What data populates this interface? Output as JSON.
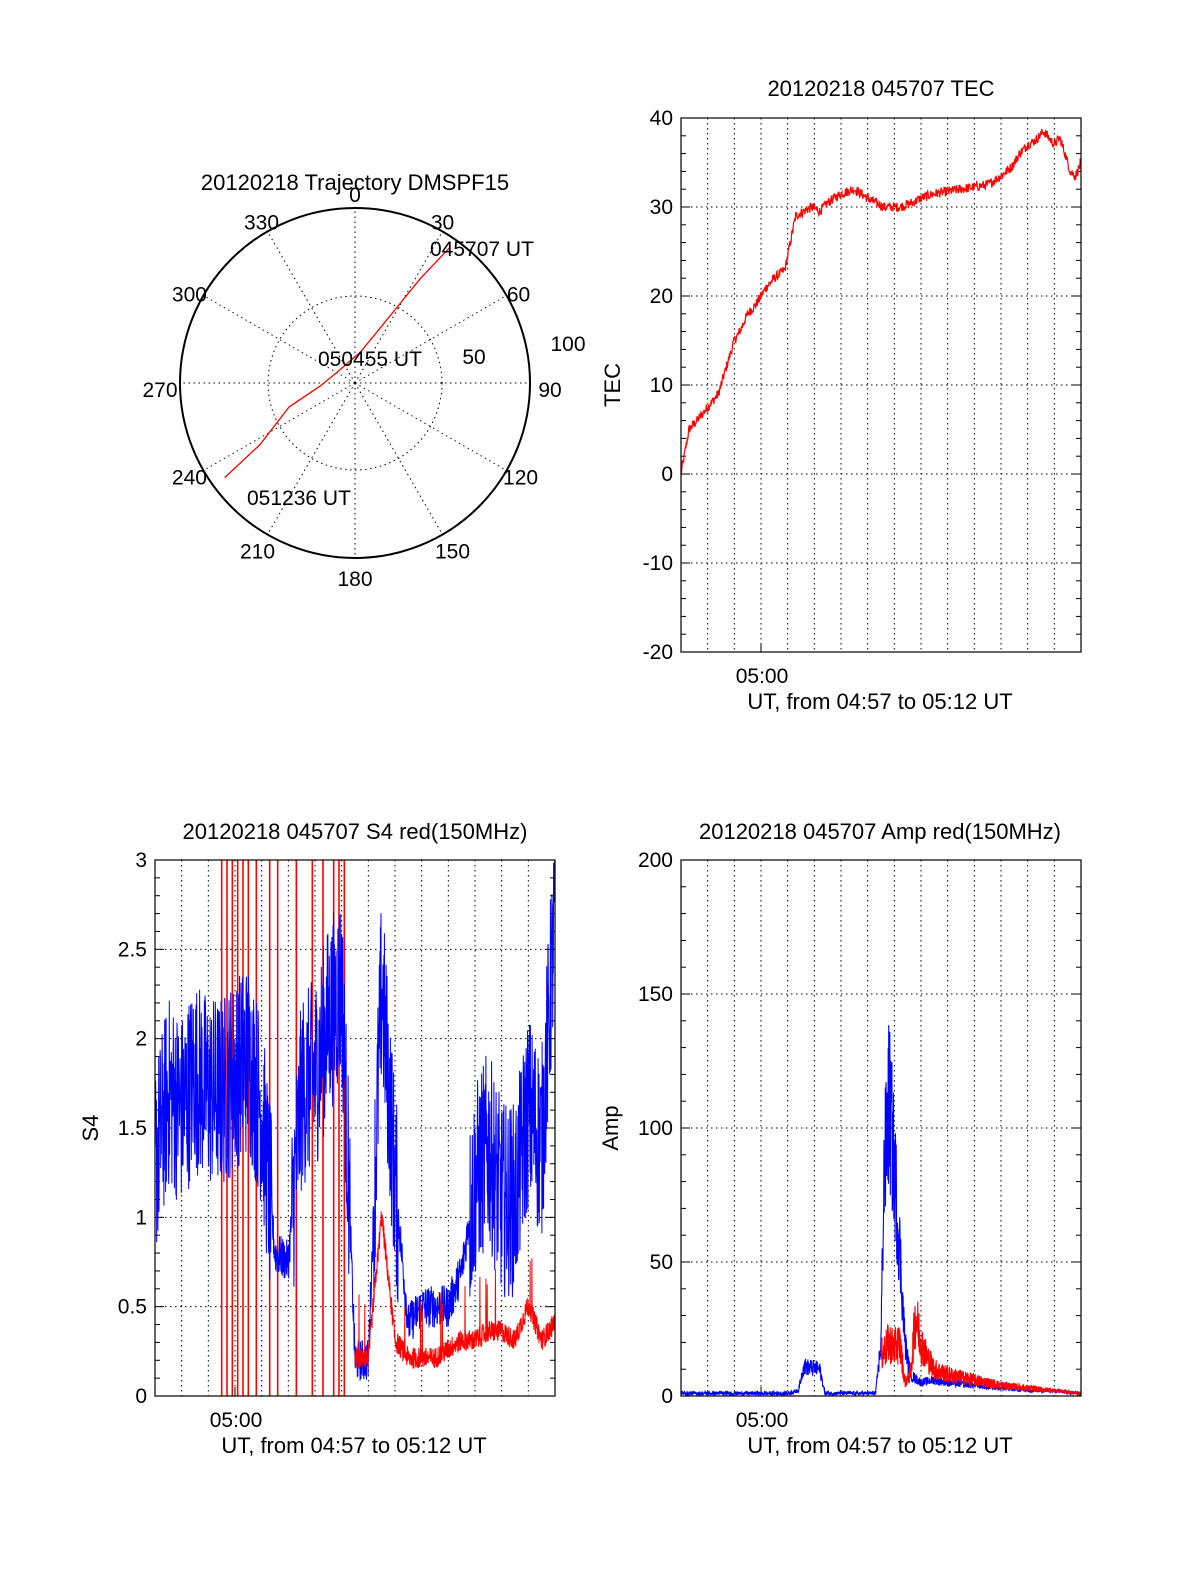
{
  "colors": {
    "red": "#ff0000",
    "blue": "#0000ff",
    "axis": "#000000",
    "background": "#ffffff"
  },
  "polar": {
    "title": "20120218 Trajectory DMSPF15",
    "azimuth_labels": [
      "0",
      "30",
      "60",
      "90",
      "120",
      "150",
      "180",
      "210",
      "240",
      "270",
      "300",
      "330"
    ],
    "radial_labels": [
      "50",
      "100"
    ],
    "start_label": "045707 UT",
    "mid_label": "050455 UT",
    "end_label": "051236 UT"
  },
  "tec": {
    "title": "20120218 045707 TEC",
    "ylabel": "TEC",
    "xtick_label": "05:00",
    "xlabel": "UT, from 04:57 to 05:12 UT",
    "ytick_labels": [
      "-20",
      "-10",
      "0",
      "10",
      "20",
      "30",
      "40"
    ]
  },
  "s4": {
    "title": "20120218 045707 S4 red(150MHz)",
    "ylabel": "S4",
    "xtick_label": "05:00",
    "xlabel": "UT, from 04:57 to 05:12 UT",
    "ytick_labels": [
      "0",
      "0.5",
      "1",
      "1.5",
      "2",
      "2.5",
      "3"
    ]
  },
  "amp": {
    "title": "20120218 045707 Amp red(150MHz)",
    "ylabel": "Amp",
    "xtick_label": "05:00",
    "xlabel": "UT, from 04:57 to 05:12 UT",
    "ytick_labels": [
      "0",
      "50",
      "100",
      "150",
      "200"
    ]
  },
  "chart_data": [
    {
      "type": "scatter",
      "panel": "polar",
      "title": "20120218 Trajectory DMSPF15",
      "coordinate_system": "polar (azimuth deg clockwise from north, radial 0-100)",
      "rlim": [
        0,
        100
      ],
      "series": [
        {
          "color": "red",
          "points": [
            {
              "az": 35,
              "r": 95
            },
            {
              "az": 32,
              "r": 70
            },
            {
              "az": 28,
              "r": 45
            },
            {
              "az": 10,
              "r": 18
            },
            {
              "az": 300,
              "r": 12
            },
            {
              "az": 265,
              "r": 20
            },
            {
              "az": 250,
              "r": 40
            },
            {
              "az": 237,
              "r": 65
            },
            {
              "az": 234,
              "r": 92
            }
          ]
        }
      ],
      "annotations": [
        {
          "text": "045707 UT",
          "az": 35,
          "r": 95
        },
        {
          "text": "050455 UT",
          "az": 0,
          "r": 0
        },
        {
          "text": "051236 UT",
          "az": 234,
          "r": 92
        }
      ]
    },
    {
      "type": "line",
      "panel": "tec",
      "title": "20120218 045707 TEC",
      "ylabel": "TEC",
      "xlabel": "UT, from 04:57 to 05:12 UT",
      "xlim_minutes_after_0457": [
        0,
        15
      ],
      "ylim": [
        -20,
        40
      ],
      "grid": true,
      "series": [
        {
          "color": "red",
          "x": [
            0,
            0.3,
            0.6,
            1.0,
            1.4,
            1.6,
            1.8,
            2.0,
            2.2,
            2.5,
            2.8,
            3.0,
            3.2,
            3.5,
            3.9,
            4.1,
            4.3,
            4.6,
            4.9,
            5.2,
            5.5,
            6.0,
            6.5,
            7.0,
            7.3,
            7.6,
            8.2,
            8.7,
            9.0,
            9.5,
            10.5,
            11.5,
            12.0,
            12.4,
            12.7,
            13.0,
            13.3,
            13.6,
            14.0,
            14.2,
            14.4,
            14.6,
            14.8,
            15.0
          ],
          "y": [
            0,
            5,
            6,
            7.5,
            9,
            11,
            13,
            15,
            16,
            18,
            19,
            20,
            21,
            22,
            23,
            26,
            29,
            29.5,
            30,
            29.5,
            30.5,
            31.5,
            32,
            31,
            30.5,
            30,
            30,
            30.5,
            31,
            31.5,
            32,
            32.5,
            33.5,
            34.5,
            36,
            37,
            37.5,
            38.5,
            37,
            37.8,
            36,
            34,
            33.5,
            35
          ]
        }
      ]
    },
    {
      "type": "line",
      "panel": "s4",
      "title": "20120218 045707 S4 red(150MHz)",
      "ylabel": "S4",
      "xlabel": "UT, from 04:57 to 05:12 UT",
      "xlim_minutes_after_0457": [
        0,
        15
      ],
      "ylim": [
        0,
        3
      ],
      "grid": true,
      "series": [
        {
          "color": "blue",
          "x": [
            0,
            0.5,
            1.0,
            1.5,
            2.0,
            2.5,
            3.0,
            3.5,
            4.0,
            4.5,
            5.0,
            5.5,
            6.0,
            6.5,
            7.0,
            7.5,
            8.0,
            8.5,
            9.0,
            9.5,
            10.0,
            10.5,
            11.0,
            11.5,
            12.0,
            12.5,
            13.0,
            13.5,
            14.0,
            14.5,
            15.0
          ],
          "y": [
            1.3,
            1.7,
            1.6,
            1.8,
            1.7,
            1.7,
            1.8,
            1.9,
            1.6,
            0.8,
            0.75,
            1.7,
            1.8,
            2.1,
            2.3,
            0.2,
            0.2,
            2.3,
            1.2,
            0.4,
            0.5,
            0.5,
            0.5,
            0.7,
            1.2,
            1.4,
            1.1,
            1.1,
            1.6,
            1.4,
            2.7
          ]
        },
        {
          "color": "red",
          "x": [
            7.5,
            8.0,
            8.5,
            9.0,
            9.5,
            10.0,
            10.5,
            11.0,
            11.5,
            12.0,
            12.5,
            13.0,
            13.5,
            14.0,
            14.5,
            15.0
          ],
          "y": [
            0.2,
            0.2,
            1.0,
            0.3,
            0.2,
            0.2,
            0.2,
            0.25,
            0.3,
            0.3,
            0.35,
            0.35,
            0.3,
            0.5,
            0.3,
            0.4
          ]
        }
      ],
      "red_spikes_x": [
        2.5,
        2.7,
        2.9,
        3.1,
        3.3,
        3.5,
        3.8,
        4.3,
        4.6,
        5.3,
        5.9,
        6.3,
        6.7,
        6.9,
        7.1
      ]
    },
    {
      "type": "line",
      "panel": "amp",
      "title": "20120218 045707 Amp red(150MHz)",
      "ylabel": "Amp",
      "xlabel": "UT, from 04:57 to 05:12 UT",
      "xlim_minutes_after_0457": [
        0,
        15
      ],
      "ylim": [
        0,
        200
      ],
      "grid": true,
      "series": [
        {
          "color": "blue",
          "x": [
            0,
            2,
            4,
            4.4,
            4.6,
            5.2,
            5.4,
            7.3,
            7.5,
            7.6,
            7.8,
            8.0,
            8.2,
            8.4,
            8.6,
            9.0,
            9.5,
            10,
            11,
            12,
            13,
            14,
            15
          ],
          "y": [
            1,
            1,
            1,
            2,
            11,
            10,
            1,
            1,
            20,
            80,
            110,
            85,
            55,
            20,
            8,
            5,
            6,
            5,
            4,
            3,
            2,
            2,
            1
          ]
        },
        {
          "color": "red",
          "x": [
            7.5,
            7.8,
            8.0,
            8.2,
            8.4,
            8.6,
            8.8,
            9.0,
            9.2,
            9.5,
            10,
            11,
            12,
            13,
            14,
            15
          ],
          "y": [
            15,
            20,
            18,
            20,
            5,
            8,
            30,
            20,
            15,
            10,
            8,
            6,
            4,
            3,
            2,
            1
          ]
        }
      ]
    }
  ]
}
